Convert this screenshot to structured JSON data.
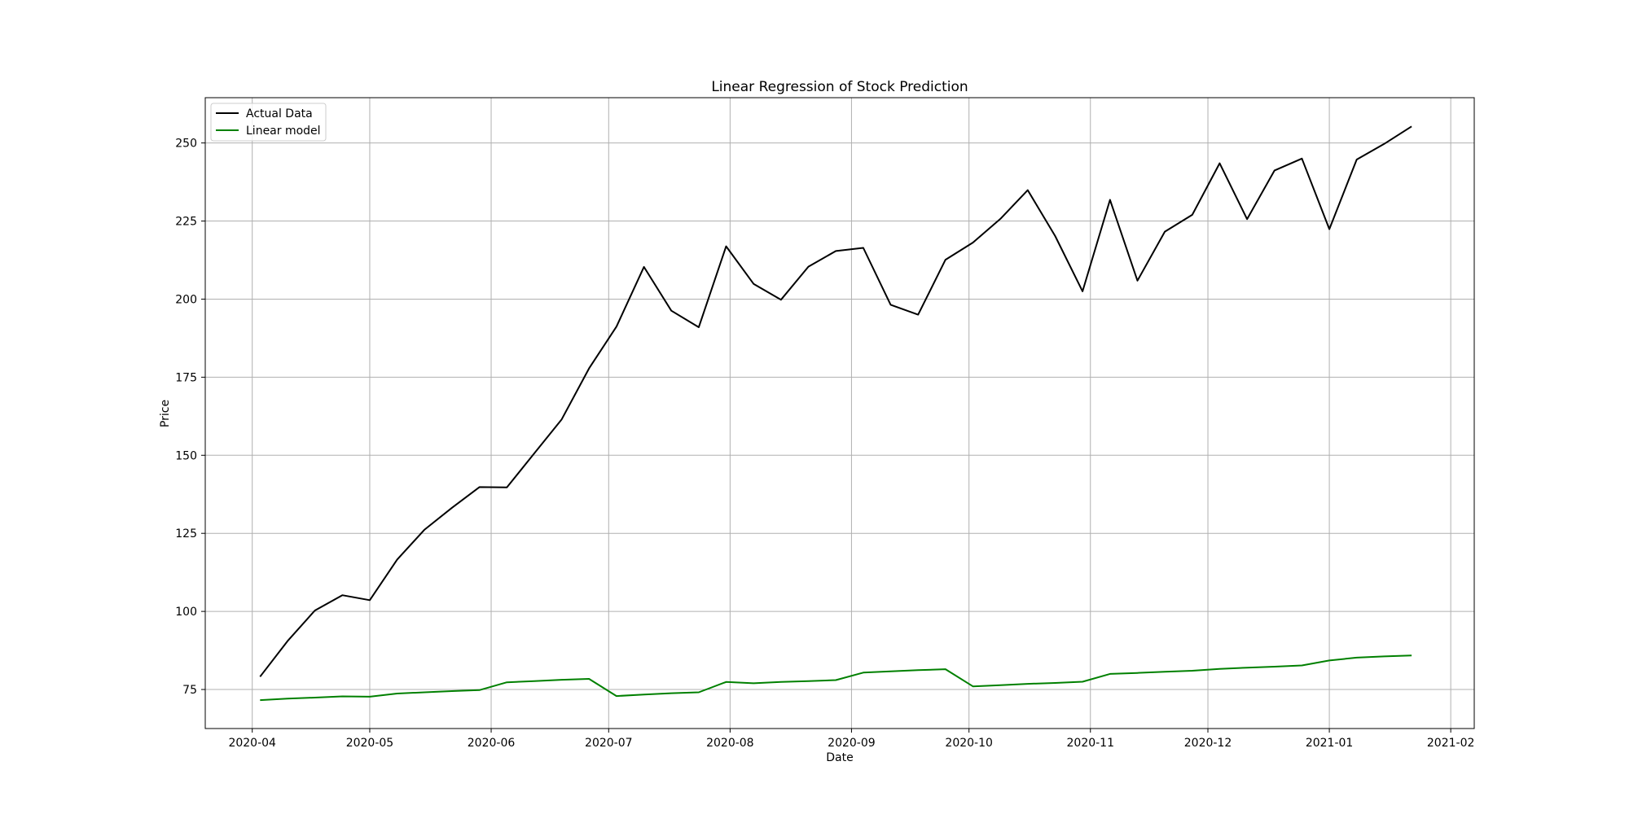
{
  "chart_data": {
    "type": "line",
    "title": "Linear Regression of Stock Prediction",
    "xlabel": "Date",
    "ylabel": "Price",
    "x_axis_type": "date",
    "x_ticks": [
      "2020-04",
      "2020-05",
      "2020-06",
      "2020-07",
      "2020-08",
      "2020-09",
      "2020-10",
      "2020-11",
      "2020-12",
      "2021-01",
      "2021-02"
    ],
    "y_ticks": [
      75,
      100,
      125,
      150,
      175,
      200,
      225,
      250
    ],
    "xlim": [
      "2020-03-20",
      "2021-02-07"
    ],
    "ylim": [
      62.5,
      264.5
    ],
    "grid": true,
    "legend": "top-left",
    "x": [
      "2020-04-03",
      "2020-04-10",
      "2020-04-17",
      "2020-04-24",
      "2020-05-01",
      "2020-05-08",
      "2020-05-15",
      "2020-05-22",
      "2020-05-29",
      "2020-06-05",
      "2020-06-12",
      "2020-06-19",
      "2020-06-26",
      "2020-07-03",
      "2020-07-10",
      "2020-07-17",
      "2020-07-24",
      "2020-07-31",
      "2020-08-07",
      "2020-08-14",
      "2020-08-21",
      "2020-08-28",
      "2020-09-04",
      "2020-09-11",
      "2020-09-18",
      "2020-09-25",
      "2020-10-02",
      "2020-10-09",
      "2020-10-16",
      "2020-10-23",
      "2020-10-30",
      "2020-11-06",
      "2020-11-13",
      "2020-11-20",
      "2020-11-27",
      "2020-12-04",
      "2020-12-11",
      "2020-12-18",
      "2020-12-25",
      "2021-01-01",
      "2021-01-08",
      "2021-01-15",
      "2021-01-22"
    ],
    "series": [
      {
        "name": "Actual Data",
        "color": "#000000",
        "values": [
          79.1,
          90.5,
          100.3,
          105.2,
          103.6,
          116.6,
          126.2,
          133.2,
          139.8,
          139.7,
          150.6,
          161.5,
          177.8,
          191.2,
          210.3,
          196.3,
          191.0,
          216.9,
          204.9,
          199.8,
          210.4,
          215.4,
          216.4,
          198.2,
          195.0,
          212.6,
          218.1,
          225.7,
          234.9,
          220.2,
          202.5,
          231.8,
          205.9,
          221.6,
          227.0,
          243.5,
          225.6,
          241.2,
          245.0,
          222.4,
          244.7,
          249.7,
          255.3
        ]
      },
      {
        "name": "Linear model",
        "color": "#008000",
        "values": [
          71.6,
          72.1,
          72.4,
          72.8,
          72.7,
          73.7,
          74.1,
          74.5,
          74.8,
          77.3,
          77.7,
          78.1,
          78.4,
          72.9,
          73.4,
          73.8,
          74.1,
          77.4,
          77.0,
          77.4,
          77.7,
          78.0,
          80.4,
          80.8,
          81.2,
          81.5,
          76.0,
          76.4,
          76.8,
          77.1,
          77.5,
          80.0,
          80.3,
          80.7,
          81.0,
          81.6,
          82.0,
          82.3,
          82.7,
          84.3,
          85.2,
          85.6,
          85.9
        ]
      }
    ]
  }
}
